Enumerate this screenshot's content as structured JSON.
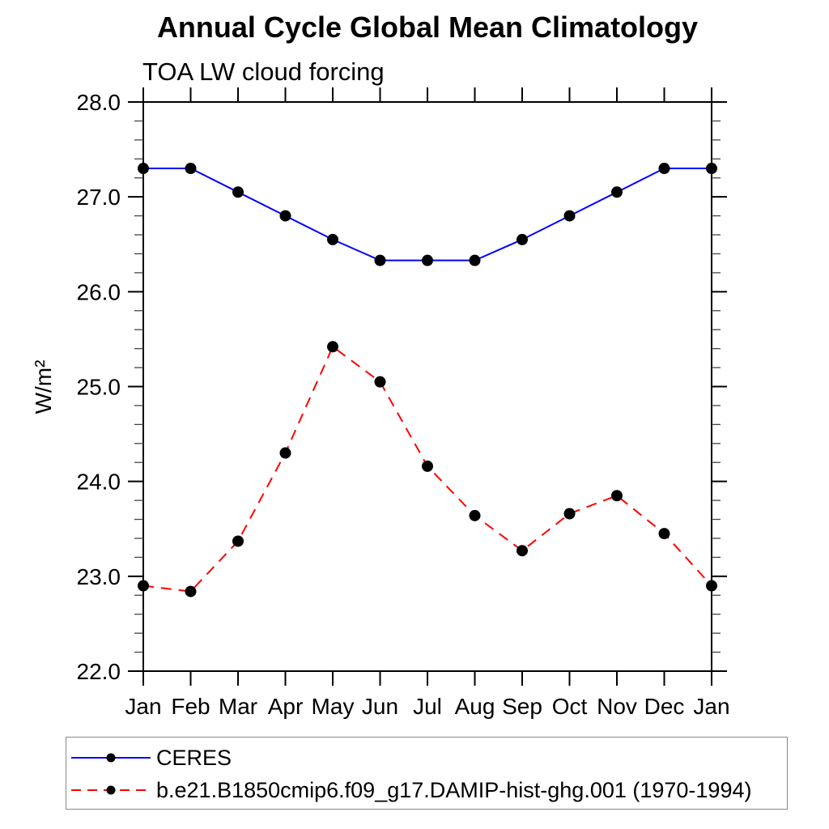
{
  "title": "Annual Cycle Global Mean Climatology",
  "subtitle": "TOA LW cloud forcing",
  "chart_data": {
    "type": "line",
    "title": "Annual Cycle Global Mean Climatology",
    "subtitle": "TOA LW cloud forcing",
    "xlabel": "",
    "ylabel": "W/m²",
    "x_categories": [
      "Jan",
      "Feb",
      "Mar",
      "Apr",
      "May",
      "Jun",
      "Jul",
      "Aug",
      "Sep",
      "Oct",
      "Nov",
      "Dec",
      "Jan"
    ],
    "ylim": [
      22.0,
      28.0
    ],
    "ytick_step": 1.0,
    "ytick_minor_step": 0.2,
    "ytick_labels": [
      "22.0",
      "23.0",
      "24.0",
      "25.0",
      "26.0",
      "27.0",
      "28.0"
    ],
    "grid": false,
    "legend_position": "bottom-left-box",
    "marker": "filled-circle",
    "marker_color": "#000000",
    "series": [
      {
        "name": "CERES",
        "color": "#0000ff",
        "line_style": "solid",
        "values": [
          27.3,
          27.3,
          27.05,
          26.8,
          26.55,
          26.33,
          26.33,
          26.33,
          26.55,
          26.8,
          27.05,
          27.3,
          27.3
        ]
      },
      {
        "name": "b.e21.B1850cmip6.f09_g17.DAMIP-hist-ghg.001 (1970-1994)",
        "color": "#ff0000",
        "line_style": "dashed",
        "values": [
          22.9,
          22.84,
          23.37,
          24.3,
          25.42,
          25.05,
          24.16,
          23.64,
          23.27,
          23.66,
          23.85,
          23.45,
          22.9
        ]
      }
    ]
  }
}
